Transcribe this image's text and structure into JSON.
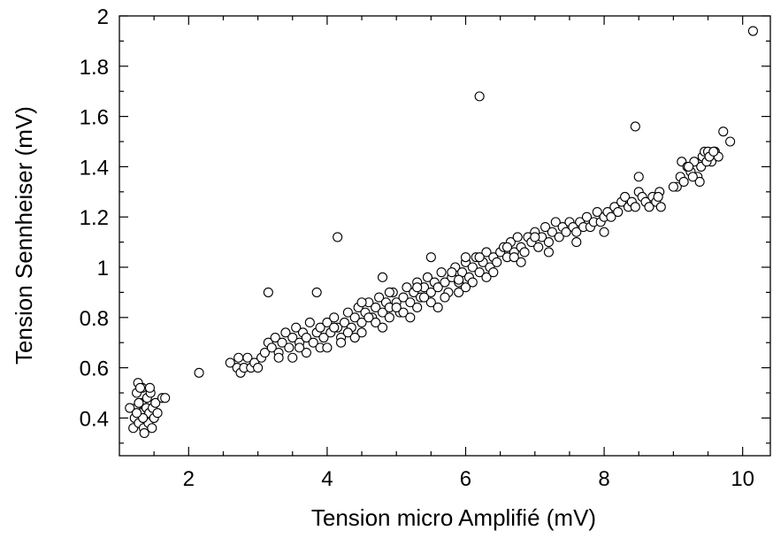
{
  "chart_data": {
    "type": "scatter",
    "title": "",
    "xlabel": "Tension micro Amplifié (mV)",
    "ylabel": "Tension Sennheiser (mV)",
    "xlim": [
      1.0,
      10.4
    ],
    "ylim": [
      0.25,
      2.0
    ],
    "x_ticks": [
      2,
      4,
      6,
      8,
      10
    ],
    "x_tick_labels": [
      "2",
      "4",
      "6",
      "8",
      "10"
    ],
    "y_ticks": [
      0.4,
      0.6,
      0.8,
      1.0,
      1.2,
      1.4,
      1.6,
      1.8,
      2.0
    ],
    "y_tick_labels": [
      "0.4",
      "0.6",
      "0.8",
      "1",
      "1.2",
      "1.4",
      "1.6",
      "1.8",
      "2"
    ],
    "grid": false,
    "marker": "open-circle",
    "colors": {
      "marker_fill": "#ffffff",
      "marker_stroke": "#000000"
    },
    "series": [
      {
        "points": [
          [
            1.2,
            0.36
          ],
          [
            1.22,
            0.4
          ],
          [
            1.24,
            0.44
          ],
          [
            1.25,
            0.5
          ],
          [
            1.27,
            0.54
          ],
          [
            1.28,
            0.38
          ],
          [
            1.3,
            0.42
          ],
          [
            1.32,
            0.46
          ],
          [
            1.33,
            0.52
          ],
          [
            1.35,
            0.36
          ],
          [
            1.36,
            0.34
          ],
          [
            1.38,
            0.4
          ],
          [
            1.39,
            0.44
          ],
          [
            1.4,
            0.48
          ],
          [
            1.42,
            0.38
          ],
          [
            1.43,
            0.42
          ],
          [
            1.45,
            0.5
          ],
          [
            1.47,
            0.36
          ],
          [
            1.48,
            0.44
          ],
          [
            1.5,
            0.4
          ],
          [
            1.52,
            0.46
          ],
          [
            1.55,
            0.42
          ],
          [
            1.62,
            0.48
          ],
          [
            1.66,
            0.48
          ],
          [
            1.3,
            0.52
          ],
          [
            1.28,
            0.46
          ],
          [
            1.34,
            0.4
          ],
          [
            1.15,
            0.44
          ],
          [
            1.44,
            0.52
          ],
          [
            1.25,
            0.42
          ],
          [
            2.15,
            0.58
          ],
          [
            2.6,
            0.62
          ],
          [
            2.7,
            0.6
          ],
          [
            2.72,
            0.64
          ],
          [
            2.75,
            0.58
          ],
          [
            2.8,
            0.6
          ],
          [
            2.85,
            0.64
          ],
          [
            2.9,
            0.6
          ],
          [
            2.95,
            0.62
          ],
          [
            3.0,
            0.6
          ],
          [
            3.05,
            0.64
          ],
          [
            3.1,
            0.66
          ],
          [
            3.15,
            0.7
          ],
          [
            3.2,
            0.68
          ],
          [
            3.25,
            0.72
          ],
          [
            3.3,
            0.66
          ],
          [
            3.35,
            0.7
          ],
          [
            3.4,
            0.74
          ],
          [
            3.45,
            0.68
          ],
          [
            3.5,
            0.72
          ],
          [
            3.55,
            0.76
          ],
          [
            3.6,
            0.7
          ],
          [
            3.65,
            0.74
          ],
          [
            3.7,
            0.72
          ],
          [
            3.75,
            0.78
          ],
          [
            3.8,
            0.7
          ],
          [
            3.85,
            0.74
          ],
          [
            3.9,
            0.76
          ],
          [
            3.95,
            0.72
          ],
          [
            4.0,
            0.78
          ],
          [
            4.05,
            0.74
          ],
          [
            4.1,
            0.8
          ],
          [
            4.15,
            0.76
          ],
          [
            4.2,
            0.72
          ],
          [
            4.25,
            0.78
          ],
          [
            4.3,
            0.82
          ],
          [
            4.35,
            0.76
          ],
          [
            4.4,
            0.8
          ],
          [
            4.45,
            0.84
          ],
          [
            4.5,
            0.78
          ],
          [
            4.55,
            0.82
          ],
          [
            4.6,
            0.86
          ],
          [
            4.65,
            0.8
          ],
          [
            4.7,
            0.84
          ],
          [
            4.75,
            0.88
          ],
          [
            4.8,
            0.82
          ],
          [
            4.85,
            0.86
          ],
          [
            4.9,
            0.84
          ],
          [
            4.95,
            0.9
          ],
          [
            5.0,
            0.86
          ],
          [
            5.05,
            0.82
          ],
          [
            5.1,
            0.88
          ],
          [
            5.15,
            0.92
          ],
          [
            5.2,
            0.86
          ],
          [
            5.25,
            0.9
          ],
          [
            5.3,
            0.94
          ],
          [
            5.35,
            0.88
          ],
          [
            5.4,
            0.92
          ],
          [
            5.45,
            0.96
          ],
          [
            5.5,
            0.9
          ],
          [
            5.55,
            0.94
          ],
          [
            5.6,
            0.92
          ],
          [
            5.65,
            0.98
          ],
          [
            5.7,
            0.94
          ],
          [
            5.75,
            0.9
          ],
          [
            5.8,
            0.96
          ],
          [
            5.85,
            1.0
          ],
          [
            5.9,
            0.94
          ],
          [
            5.95,
            0.98
          ],
          [
            6.0,
            1.02
          ],
          [
            6.05,
            0.96
          ],
          [
            6.1,
            1.0
          ],
          [
            6.15,
            1.04
          ],
          [
            6.2,
            0.98
          ],
          [
            6.25,
            1.02
          ],
          [
            6.3,
            1.06
          ],
          [
            6.35,
            1.0
          ],
          [
            6.4,
            1.04
          ],
          [
            6.45,
            1.02
          ],
          [
            6.5,
            1.06
          ],
          [
            6.55,
            1.08
          ],
          [
            6.6,
            1.04
          ],
          [
            6.65,
            1.1
          ],
          [
            6.7,
            1.06
          ],
          [
            6.75,
            1.12
          ],
          [
            6.8,
            1.08
          ],
          [
            6.85,
            1.06
          ],
          [
            6.9,
            1.12
          ],
          [
            6.95,
            1.1
          ],
          [
            7.0,
            1.14
          ],
          [
            7.05,
            1.08
          ],
          [
            7.1,
            1.12
          ],
          [
            7.15,
            1.16
          ],
          [
            7.2,
            1.1
          ],
          [
            7.25,
            1.14
          ],
          [
            7.3,
            1.18
          ],
          [
            7.35,
            1.12
          ],
          [
            7.4,
            1.16
          ],
          [
            7.45,
            1.14
          ],
          [
            7.5,
            1.18
          ],
          [
            7.55,
            1.16
          ],
          [
            7.6,
            1.14
          ],
          [
            7.65,
            1.18
          ],
          [
            7.7,
            1.16
          ],
          [
            7.75,
            1.2
          ],
          [
            7.8,
            1.16
          ],
          [
            7.85,
            1.18
          ],
          [
            7.9,
            1.22
          ],
          [
            7.95,
            1.18
          ],
          [
            8.0,
            1.2
          ],
          [
            8.05,
            1.22
          ],
          [
            8.1,
            1.2
          ],
          [
            8.15,
            1.24
          ],
          [
            8.2,
            1.22
          ],
          [
            8.25,
            1.26
          ],
          [
            8.3,
            1.28
          ],
          [
            8.35,
            1.24
          ],
          [
            8.4,
            1.26
          ],
          [
            8.45,
            1.24
          ],
          [
            8.5,
            1.3
          ],
          [
            8.55,
            1.28
          ],
          [
            8.6,
            1.26
          ],
          [
            8.65,
            1.24
          ],
          [
            8.7,
            1.28
          ],
          [
            8.75,
            1.26
          ],
          [
            8.8,
            1.3
          ],
          [
            8.82,
            1.24
          ],
          [
            8.78,
            1.28
          ],
          [
            8.5,
            1.36
          ],
          [
            4.2,
            0.7
          ],
          [
            4.3,
            0.74
          ],
          [
            4.5,
            0.74
          ],
          [
            4.7,
            0.78
          ],
          [
            4.9,
            0.8
          ],
          [
            5.1,
            0.82
          ],
          [
            5.3,
            0.84
          ],
          [
            5.5,
            0.86
          ],
          [
            5.7,
            0.88
          ],
          [
            5.9,
            0.9
          ],
          [
            6.1,
            0.94
          ],
          [
            6.3,
            0.96
          ],
          [
            3.7,
            0.66
          ],
          [
            3.9,
            0.68
          ],
          [
            3.5,
            0.64
          ],
          [
            4.0,
            0.68
          ],
          [
            4.4,
            0.72
          ],
          [
            4.8,
            0.76
          ],
          [
            5.2,
            0.8
          ],
          [
            5.6,
            0.84
          ],
          [
            6.0,
            0.92
          ],
          [
            6.4,
            0.98
          ],
          [
            6.8,
            1.02
          ],
          [
            7.2,
            1.06
          ],
          [
            7.6,
            1.1
          ],
          [
            8.0,
            1.14
          ],
          [
            4.5,
            0.86
          ],
          [
            4.9,
            0.9
          ],
          [
            5.3,
            0.92
          ],
          [
            5.8,
            0.98
          ],
          [
            6.2,
            1.04
          ],
          [
            6.6,
            1.08
          ],
          [
            7.0,
            1.12
          ],
          [
            3.3,
            0.64
          ],
          [
            3.6,
            0.68
          ],
          [
            4.1,
            0.76
          ],
          [
            4.6,
            0.8
          ],
          [
            5.0,
            0.84
          ],
          [
            5.4,
            0.88
          ],
          [
            6.7,
            1.04
          ],
          [
            9.05,
            1.32
          ],
          [
            9.1,
            1.36
          ],
          [
            9.12,
            1.42
          ],
          [
            9.15,
            1.34
          ],
          [
            9.2,
            1.4
          ],
          [
            9.25,
            1.38
          ],
          [
            9.3,
            1.42
          ],
          [
            9.35,
            1.36
          ],
          [
            9.4,
            1.4
          ],
          [
            9.42,
            1.44
          ],
          [
            9.45,
            1.46
          ],
          [
            9.5,
            1.46
          ],
          [
            9.55,
            1.42
          ],
          [
            9.6,
            1.46
          ],
          [
            9.65,
            1.44
          ],
          [
            9.38,
            1.34
          ],
          [
            9.28,
            1.36
          ],
          [
            9.48,
            1.42
          ],
          [
            9.52,
            1.44
          ],
          [
            9.22,
            1.4
          ],
          [
            9.0,
            1.32
          ],
          [
            9.58,
            1.46
          ],
          [
            9.72,
            1.54
          ],
          [
            9.82,
            1.5
          ],
          [
            10.15,
            1.94
          ],
          [
            3.15,
            0.9
          ],
          [
            3.85,
            0.9
          ],
          [
            4.15,
            1.12
          ],
          [
            4.8,
            0.96
          ],
          [
            5.5,
            1.04
          ],
          [
            6.2,
            1.68
          ],
          [
            8.45,
            1.56
          ],
          [
            6.0,
            1.04
          ],
          [
            5.9,
            0.95
          ]
        ]
      }
    ]
  }
}
